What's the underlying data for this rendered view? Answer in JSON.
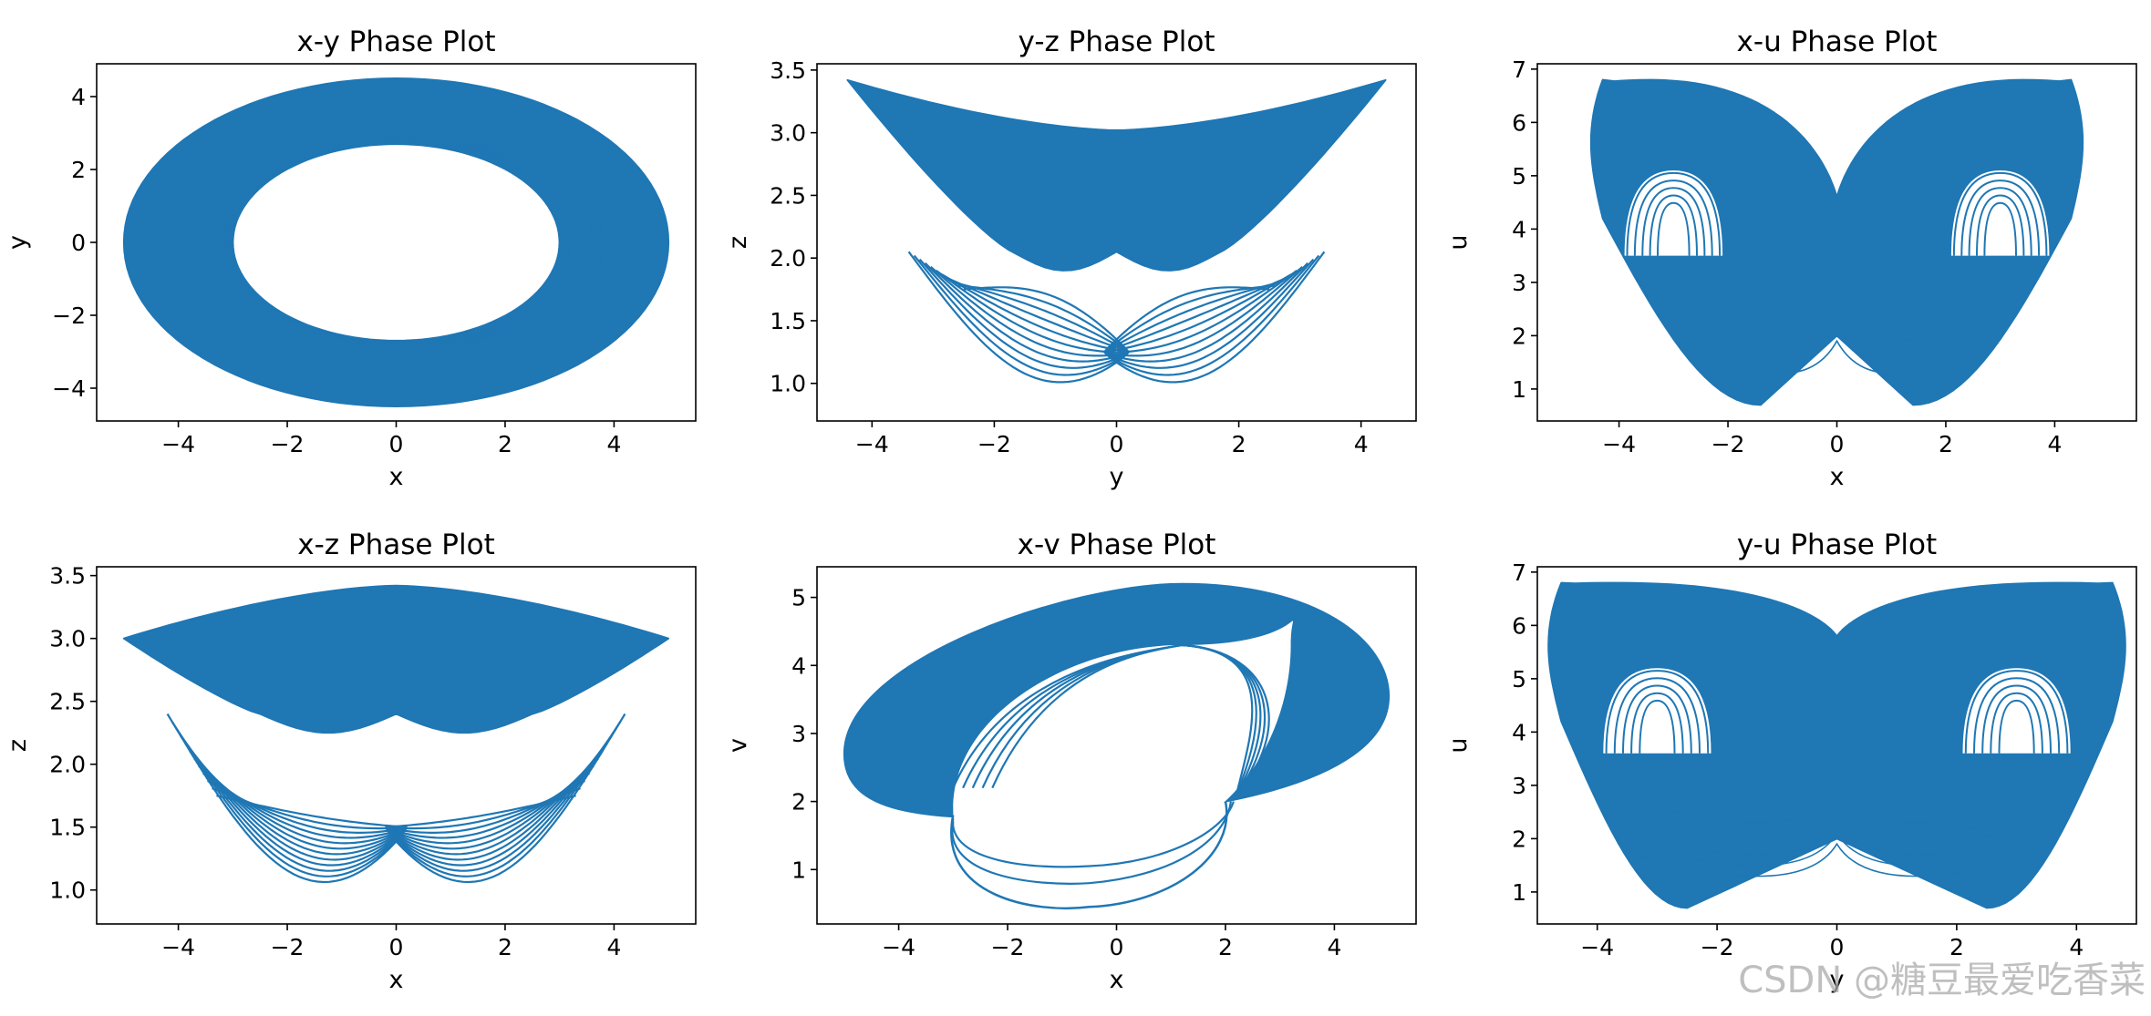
{
  "watermark": "CSDN @糖豆最爱吃香菜",
  "colors": {
    "line": "#1f77b4",
    "axes": "#000000",
    "background": "#ffffff"
  },
  "chart_data": [
    {
      "type": "line",
      "title": "x-y Phase Plot",
      "xlabel": "x",
      "ylabel": "y",
      "xlim": [
        -5.5,
        5.5
      ],
      "ylim": [
        -4.9,
        4.9
      ],
      "xticks": [
        -4,
        -2,
        0,
        2,
        4
      ],
      "yticks": [
        -4,
        -2,
        0,
        2,
        4
      ],
      "shape": "ring",
      "params": {
        "outer_x": 5.0,
        "outer_y": 4.5,
        "inner_x": 3.0,
        "inner_y": 2.7,
        "inner_traces": 5
      }
    },
    {
      "type": "line",
      "title": "y-z Phase Plot",
      "xlabel": "y",
      "ylabel": "z",
      "xlim": [
        -4.9,
        4.9
      ],
      "ylim": [
        0.7,
        3.55
      ],
      "xticks": [
        -4,
        -2,
        0,
        2,
        4
      ],
      "yticks": [
        1.0,
        1.5,
        2.0,
        2.5,
        3.0,
        3.5
      ],
      "shape": "bowl",
      "params": {
        "tip_x": 4.4,
        "tip_y": 3.42,
        "center_top": 3.02,
        "mid_x": 1.7,
        "min_y": 0.85,
        "lobe_tops": [
          2.05,
          1.75
        ],
        "center_y": 1.25,
        "lobes": 11
      }
    },
    {
      "type": "line",
      "title": "x-u Phase Plot",
      "xlabel": "x",
      "ylabel": "u",
      "xlim": [
        -5.5,
        5.5
      ],
      "ylim": [
        0.4,
        7.1
      ],
      "xticks": [
        -4,
        -2,
        0,
        2,
        4
      ],
      "yticks": [
        1,
        2,
        3,
        4,
        5,
        6,
        7
      ],
      "shape": "butterfly",
      "params": {
        "lobe_x": 4.3,
        "lobe_top": 6.8,
        "center_top": 4.6,
        "bottom_x": 1.4,
        "bottom_y": 0.7,
        "hole_cx": 3.0,
        "hole_cy": 4.2,
        "hole_y0": 3.5
      }
    },
    {
      "type": "line",
      "title": "x-z Phase Plot",
      "xlabel": "x",
      "ylabel": "z",
      "xlim": [
        -5.5,
        5.5
      ],
      "ylim": [
        0.73,
        3.57
      ],
      "xticks": [
        -4,
        -2,
        0,
        2,
        4
      ],
      "yticks": [
        1.0,
        1.5,
        2.0,
        2.5,
        3.0,
        3.5
      ],
      "shape": "bowl",
      "params": {
        "tip_x": 5.0,
        "tip_y": 3.0,
        "center_top": 3.42,
        "mid_x": 2.5,
        "min_y": 0.85,
        "lobe_tops": [
          2.4,
          1.75
        ],
        "center_y": 1.5,
        "lobes": 12
      }
    },
    {
      "type": "line",
      "title": "x-v Phase Plot",
      "xlabel": "x",
      "ylabel": "v",
      "xlim": [
        -5.5,
        5.5
      ],
      "ylim": [
        0.2,
        5.45
      ],
      "xticks": [
        -4,
        -2,
        0,
        2,
        4
      ],
      "yticks": [
        1,
        2,
        3,
        4,
        5
      ],
      "shape": "tilted-ring",
      "params": {
        "outer": [
          -5.0,
          2.7,
          5.0,
          3.55,
          1.2,
          5.2,
          -1.5,
          1.75
        ],
        "inner": [
          -3.0,
          1.9,
          3.2,
          4.3,
          1.2,
          4.3,
          -0.5,
          1.25
        ],
        "min_v": 0.45
      }
    },
    {
      "type": "line",
      "title": "y-u Phase Plot",
      "xlabel": "y",
      "ylabel": "u",
      "xlim": [
        -5.0,
        5.0
      ],
      "ylim": [
        0.4,
        7.1
      ],
      "xticks": [
        -4,
        -2,
        0,
        2,
        4
      ],
      "yticks": [
        1,
        2,
        3,
        4,
        5,
        6,
        7
      ],
      "shape": "butterfly",
      "params": {
        "lobe_x": 4.6,
        "lobe_top": 6.8,
        "center_top": 5.8,
        "bottom_x": 2.5,
        "bottom_y": 0.7,
        "hole_cx": 3.0,
        "hole_cy": 4.3,
        "hole_y0": 3.6
      }
    }
  ]
}
